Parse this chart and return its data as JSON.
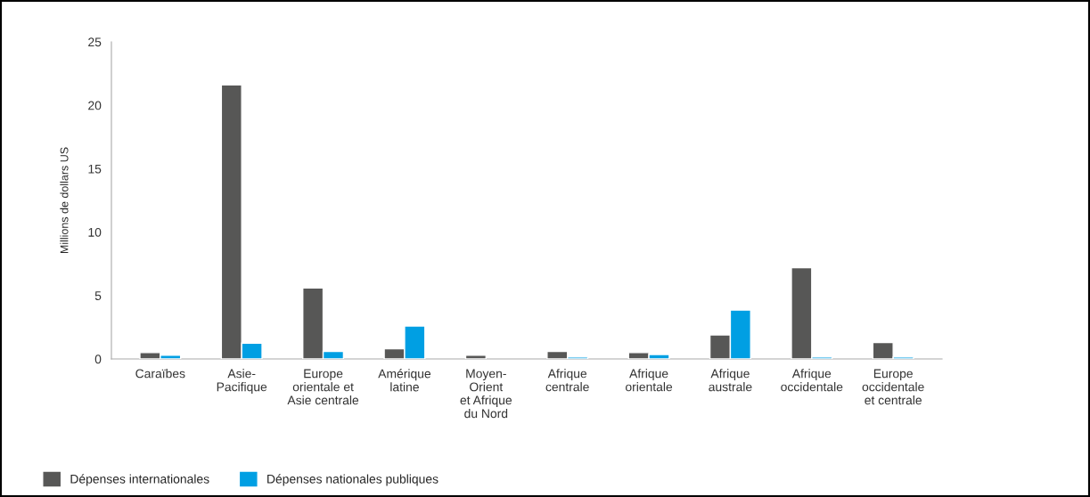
{
  "chart_data": {
    "type": "bar",
    "ylabel": "Millions de dollars US",
    "categories": [
      "Caraïbes",
      "Asie-\nPacifique",
      "Europe\norientale et\nAsie centrale",
      "Amérique\nlatine",
      "Moyen-\nOrient\net Afrique\ndu Nord",
      "Afrique\ncentrale",
      "Afrique\norientale",
      "Afrique\naustrale",
      "Afrique\noccidentale",
      "Europe\noccidentale\net centrale"
    ],
    "series": [
      {
        "name": "Dépenses internationales",
        "color": "#575756",
        "values": [
          0.5,
          21.6,
          5.6,
          0.8,
          0.3,
          0.6,
          0.5,
          1.9,
          7.2,
          1.3
        ]
      },
      {
        "name": "Dépenses nationales publiques",
        "color": "#009fe3",
        "values": [
          0.3,
          1.25,
          0.6,
          2.6,
          null,
          0.15,
          0.35,
          3.85,
          0.15,
          0.15
        ]
      }
    ],
    "ylim": [
      0,
      25
    ],
    "yticks": [
      0,
      5,
      10,
      15,
      20,
      25
    ],
    "grid": false,
    "legend": "bottom left"
  }
}
